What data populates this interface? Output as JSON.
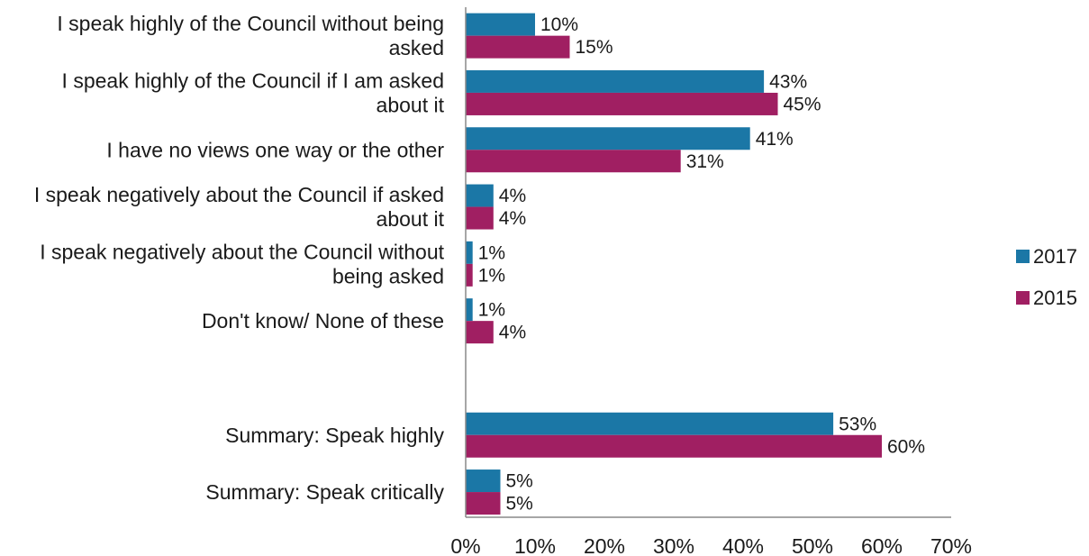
{
  "chart_data": {
    "type": "bar",
    "orientation": "horizontal",
    "categories": [
      [
        "I speak highly of the Council without being",
        "asked"
      ],
      [
        "I speak highly of the Council if I am asked",
        "about it"
      ],
      [
        "I have no views one way or the other"
      ],
      [
        "I speak negatively about the Council if asked",
        "about it"
      ],
      [
        "I speak negatively about the Council without",
        "being asked"
      ],
      [
        "Don't know/ None of these"
      ],
      [],
      [
        "Summary: Speak highly"
      ],
      [
        "Summary: Speak critically"
      ]
    ],
    "series": [
      {
        "name": "2017",
        "color": "#1B77A6",
        "values": [
          10,
          43,
          41,
          4,
          1,
          1,
          null,
          53,
          5
        ],
        "labels": [
          "10%",
          "43%",
          "41%",
          "4%",
          "1%",
          "1%",
          "",
          "53%",
          "5%"
        ]
      },
      {
        "name": "2015",
        "color": "#A01F62",
        "values": [
          15,
          45,
          31,
          4,
          1,
          4,
          null,
          60,
          5
        ],
        "labels": [
          "15%",
          "45%",
          "31%",
          "4%",
          "1%",
          "4%",
          "",
          "60%",
          "5%"
        ]
      }
    ],
    "xlim": [
      0,
      70
    ],
    "ticks": [
      "0%",
      "10%",
      "20%",
      "30%",
      "40%",
      "50%",
      "60%",
      "70%"
    ],
    "grid": false,
    "legend_position": "right"
  }
}
